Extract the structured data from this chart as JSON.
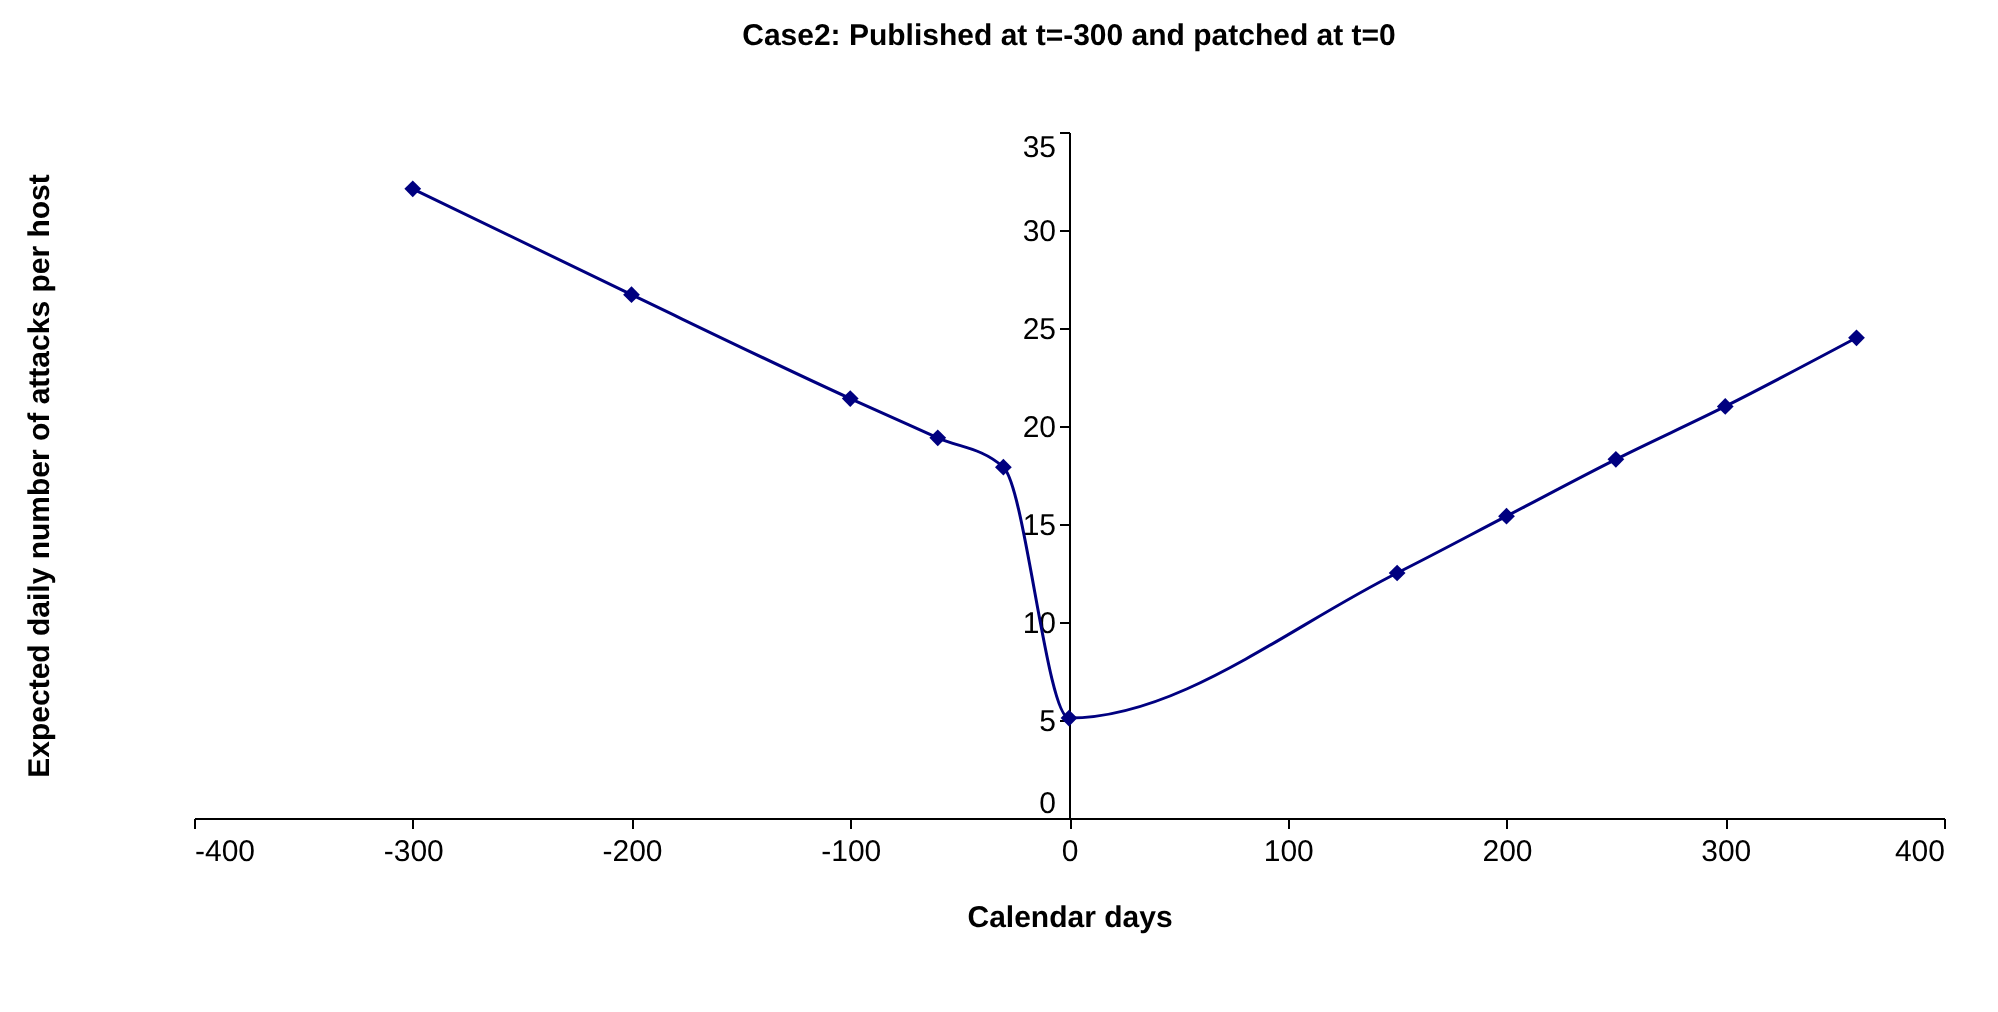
{
  "chart_data": {
    "type": "line",
    "title": "Case2: Published at t=-300 and patched at t=0",
    "xlabel": "Calendar days",
    "ylabel": "Expected daily number of attacks per host",
    "x": [
      -300,
      -200,
      -100,
      -60,
      -30,
      0,
      150,
      200,
      250,
      300,
      360
    ],
    "series": [
      {
        "color": "#000080",
        "values": [
          32.1,
          26.7,
          21.4,
          19.4,
          17.9,
          5.1,
          12.5,
          15.4,
          18.3,
          21.0,
          24.5
        ]
      }
    ],
    "xlim": [
      -400,
      400
    ],
    "xticks": [
      -400,
      -300,
      -200,
      -100,
      0,
      100,
      200,
      300,
      400
    ],
    "ylim": [
      0,
      35
    ],
    "yticks": [
      0,
      5,
      10,
      15,
      20,
      25,
      30,
      35
    ],
    "marker": "diamond",
    "line_style": "solid",
    "grid": false
  }
}
